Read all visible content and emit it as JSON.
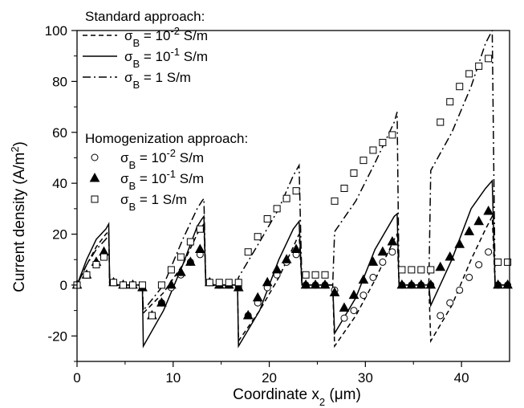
{
  "chart_data": {
    "type": "line",
    "xlabel": "Coordinate x",
    "xlabel_sub": "2",
    "xlabel_unit": " (μm)",
    "ylabel": "Current density (A/m",
    "ylabel_sup": "2",
    "ylabel_end": ")",
    "xlim": [
      0,
      45
    ],
    "ylim": [
      -30,
      100
    ],
    "xticks": [
      0,
      10,
      20,
      30,
      40
    ],
    "yticks": [
      -20,
      0,
      20,
      40,
      60,
      80,
      100
    ],
    "grid": false,
    "legend_position": "top-left",
    "legend": {
      "standard_header": "Standard approach:",
      "homog_header": "Homogenization approach:",
      "entries": [
        {
          "sym": "σ",
          "sub": "B",
          "eq": " = 10",
          "exp": "-2",
          "unit": " S/m"
        },
        {
          "sym": "σ",
          "sub": "B",
          "eq": " = 10",
          "exp": "-1",
          "unit": " S/m"
        },
        {
          "sym": "σ",
          "sub": "B",
          "eq": " = 1 S/m",
          "exp": "",
          "unit": ""
        },
        {
          "sym": "σ",
          "sub": "B",
          "eq": " = 10",
          "exp": "-2",
          "unit": " S/m"
        },
        {
          "sym": "σ",
          "sub": "B",
          "eq": " = 10",
          "exp": "-1",
          "unit": " S/m"
        },
        {
          "sym": "σ",
          "sub": "B",
          "eq": " = 1 S/m",
          "exp": "",
          "unit": ""
        }
      ]
    },
    "series": [
      {
        "style": "dash",
        "points": [
          [
            0,
            0
          ],
          [
            1,
            8
          ],
          [
            2,
            15
          ],
          [
            3,
            20
          ],
          [
            3.3,
            21
          ],
          [
            3.4,
            0
          ],
          [
            6.8,
            0
          ],
          [
            6.9,
            -11
          ],
          [
            9,
            -3
          ],
          [
            11,
            8
          ],
          [
            12.5,
            20
          ],
          [
            13,
            23
          ],
          [
            13.2,
            24
          ],
          [
            13.4,
            0
          ],
          [
            16.7,
            0
          ],
          [
            16.8,
            -22
          ],
          [
            19,
            -10
          ],
          [
            21,
            3
          ],
          [
            22.5,
            15
          ],
          [
            23.1,
            20
          ],
          [
            23.4,
            0
          ],
          [
            26.6,
            0
          ],
          [
            26.8,
            -24
          ],
          [
            29,
            -12
          ],
          [
            31,
            2
          ],
          [
            33,
            18
          ],
          [
            33.3,
            20
          ],
          [
            33.5,
            0
          ],
          [
            36.6,
            0
          ],
          [
            36.8,
            -22
          ],
          [
            39,
            -8
          ],
          [
            41,
            10
          ],
          [
            42.5,
            22
          ],
          [
            43.2,
            27
          ],
          [
            43.5,
            0
          ],
          [
            45,
            0
          ]
        ]
      },
      {
        "style": "solid",
        "points": [
          [
            0,
            0
          ],
          [
            1,
            10
          ],
          [
            2,
            18
          ],
          [
            3,
            22
          ],
          [
            3.3,
            24
          ],
          [
            3.4,
            0
          ],
          [
            6.8,
            0
          ],
          [
            6.9,
            -24
          ],
          [
            9,
            -10
          ],
          [
            11,
            8
          ],
          [
            12.5,
            23
          ],
          [
            13,
            26
          ],
          [
            13.2,
            27
          ],
          [
            13.4,
            0
          ],
          [
            16.7,
            0
          ],
          [
            16.8,
            -24
          ],
          [
            19,
            -10
          ],
          [
            21,
            10
          ],
          [
            22.5,
            22
          ],
          [
            23.1,
            25
          ],
          [
            23.4,
            0
          ],
          [
            26.6,
            0
          ],
          [
            26.8,
            -19
          ],
          [
            29,
            -5
          ],
          [
            31,
            14
          ],
          [
            33,
            27
          ],
          [
            33.3,
            28
          ],
          [
            33.5,
            0
          ],
          [
            36.6,
            0
          ],
          [
            36.8,
            -8
          ],
          [
            39,
            10
          ],
          [
            41,
            30
          ],
          [
            42.5,
            38
          ],
          [
            43.2,
            41
          ],
          [
            43.5,
            0
          ],
          [
            45,
            0
          ]
        ]
      },
      {
        "style": "dashdot",
        "points": [
          [
            0,
            0
          ],
          [
            1,
            8
          ],
          [
            2,
            14
          ],
          [
            3,
            18
          ],
          [
            3.3,
            20
          ],
          [
            3.4,
            0
          ],
          [
            6.8,
            0
          ],
          [
            6.9,
            -10
          ],
          [
            9,
            0
          ],
          [
            11,
            18
          ],
          [
            12.5,
            30
          ],
          [
            13,
            33
          ],
          [
            13.2,
            34
          ],
          [
            13.4,
            0
          ],
          [
            16.7,
            0
          ],
          [
            16.8,
            3
          ],
          [
            19,
            17
          ],
          [
            21,
            30
          ],
          [
            22.5,
            43
          ],
          [
            23.1,
            47
          ],
          [
            23.4,
            0
          ],
          [
            26.6,
            0
          ],
          [
            26.8,
            21
          ],
          [
            29,
            33
          ],
          [
            31,
            48
          ],
          [
            33,
            64
          ],
          [
            33.3,
            68
          ],
          [
            33.5,
            0
          ],
          [
            36.6,
            0
          ],
          [
            36.8,
            45
          ],
          [
            39,
            60
          ],
          [
            41,
            78
          ],
          [
            42.5,
            95
          ],
          [
            43.2,
            100
          ],
          [
            43.5,
            0
          ],
          [
            45,
            0
          ]
        ]
      }
    ],
    "markers": [
      {
        "style": "circle",
        "points": [
          [
            0,
            0
          ],
          [
            1,
            4
          ],
          [
            2,
            8
          ],
          [
            2.8,
            11
          ],
          [
            3.8,
            1
          ],
          [
            4.8,
            0
          ],
          [
            5.8,
            0
          ],
          [
            6.8,
            -1
          ],
          [
            7.8,
            -12
          ],
          [
            8.8,
            -7
          ],
          [
            9.8,
            -1
          ],
          [
            10.8,
            4
          ],
          [
            11.8,
            9
          ],
          [
            12.8,
            12
          ],
          [
            13.8,
            1
          ],
          [
            14.8,
            0
          ],
          [
            15.8,
            0
          ],
          [
            16.8,
            -1
          ],
          [
            17.8,
            -12
          ],
          [
            18.8,
            -7
          ],
          [
            19.8,
            -1
          ],
          [
            20.8,
            4
          ],
          [
            21.8,
            9
          ],
          [
            22.8,
            12
          ],
          [
            23.8,
            0
          ],
          [
            24.8,
            0
          ],
          [
            25.8,
            0
          ],
          [
            26.8,
            -2
          ],
          [
            27.8,
            -13
          ],
          [
            28.8,
            -10
          ],
          [
            29.8,
            -4
          ],
          [
            30.8,
            3
          ],
          [
            31.8,
            9
          ],
          [
            32.8,
            13
          ],
          [
            33.8,
            0
          ],
          [
            34.8,
            0
          ],
          [
            35.8,
            0
          ],
          [
            36.8,
            0
          ],
          [
            37.8,
            -12
          ],
          [
            38.8,
            -7
          ],
          [
            39.8,
            -2
          ],
          [
            40.8,
            3
          ],
          [
            41.8,
            8
          ],
          [
            42.8,
            13
          ],
          [
            43.8,
            0
          ],
          [
            44.8,
            0
          ]
        ]
      },
      {
        "style": "triangle",
        "points": [
          [
            0,
            0
          ],
          [
            1,
            4
          ],
          [
            2,
            9
          ],
          [
            2.8,
            13
          ],
          [
            3.8,
            1
          ],
          [
            4.8,
            0
          ],
          [
            5.8,
            0
          ],
          [
            6.8,
            -1
          ],
          [
            7.8,
            -12
          ],
          [
            8.8,
            -7
          ],
          [
            9.8,
            0
          ],
          [
            10.8,
            5
          ],
          [
            11.8,
            9
          ],
          [
            12.8,
            14
          ],
          [
            13.8,
            1
          ],
          [
            14.8,
            0
          ],
          [
            15.8,
            0
          ],
          [
            16.8,
            -1
          ],
          [
            17.8,
            -12
          ],
          [
            18.8,
            -5
          ],
          [
            19.8,
            1
          ],
          [
            20.8,
            6
          ],
          [
            21.8,
            10
          ],
          [
            22.8,
            14
          ],
          [
            23.8,
            0
          ],
          [
            24.8,
            0
          ],
          [
            25.8,
            0
          ],
          [
            26.8,
            -3
          ],
          [
            27.8,
            -9
          ],
          [
            28.8,
            -4
          ],
          [
            29.8,
            2
          ],
          [
            30.8,
            9
          ],
          [
            31.8,
            13
          ],
          [
            32.8,
            17
          ],
          [
            33.8,
            0
          ],
          [
            34.8,
            0
          ],
          [
            35.8,
            0
          ],
          [
            36.8,
            0
          ],
          [
            37.8,
            7
          ],
          [
            38.8,
            11
          ],
          [
            39.8,
            16
          ],
          [
            40.8,
            21
          ],
          [
            41.8,
            25
          ],
          [
            42.8,
            29
          ],
          [
            43.8,
            0
          ],
          [
            44.8,
            0
          ]
        ]
      },
      {
        "style": "square",
        "points": [
          [
            0,
            0
          ],
          [
            1,
            4
          ],
          [
            2,
            8
          ],
          [
            2.8,
            11
          ],
          [
            3.8,
            1
          ],
          [
            4.8,
            0
          ],
          [
            5.8,
            0
          ],
          [
            6.8,
            0
          ],
          [
            7.8,
            -12
          ],
          [
            8.8,
            0
          ],
          [
            9.8,
            6
          ],
          [
            10.8,
            11
          ],
          [
            11.8,
            17
          ],
          [
            12.8,
            22
          ],
          [
            13.8,
            1
          ],
          [
            14.8,
            1
          ],
          [
            15.8,
            1
          ],
          [
            16.8,
            1
          ],
          [
            17.8,
            13
          ],
          [
            18.8,
            19
          ],
          [
            19.8,
            26
          ],
          [
            20.8,
            30
          ],
          [
            21.8,
            34
          ],
          [
            22.8,
            37
          ],
          [
            23.8,
            4
          ],
          [
            24.8,
            4
          ],
          [
            25.8,
            4
          ],
          [
            26.8,
            33
          ],
          [
            27.8,
            38
          ],
          [
            28.8,
            44
          ],
          [
            29.8,
            49
          ],
          [
            30.8,
            53
          ],
          [
            31.8,
            56
          ],
          [
            32.8,
            59
          ],
          [
            33.8,
            6
          ],
          [
            34.8,
            6
          ],
          [
            35.8,
            6
          ],
          [
            36.8,
            6
          ],
          [
            37.8,
            64
          ],
          [
            38.8,
            72
          ],
          [
            39.8,
            78
          ],
          [
            40.8,
            83
          ],
          [
            41.8,
            86
          ],
          [
            42.8,
            89
          ],
          [
            43.8,
            9
          ],
          [
            44.8,
            9
          ]
        ]
      }
    ]
  }
}
